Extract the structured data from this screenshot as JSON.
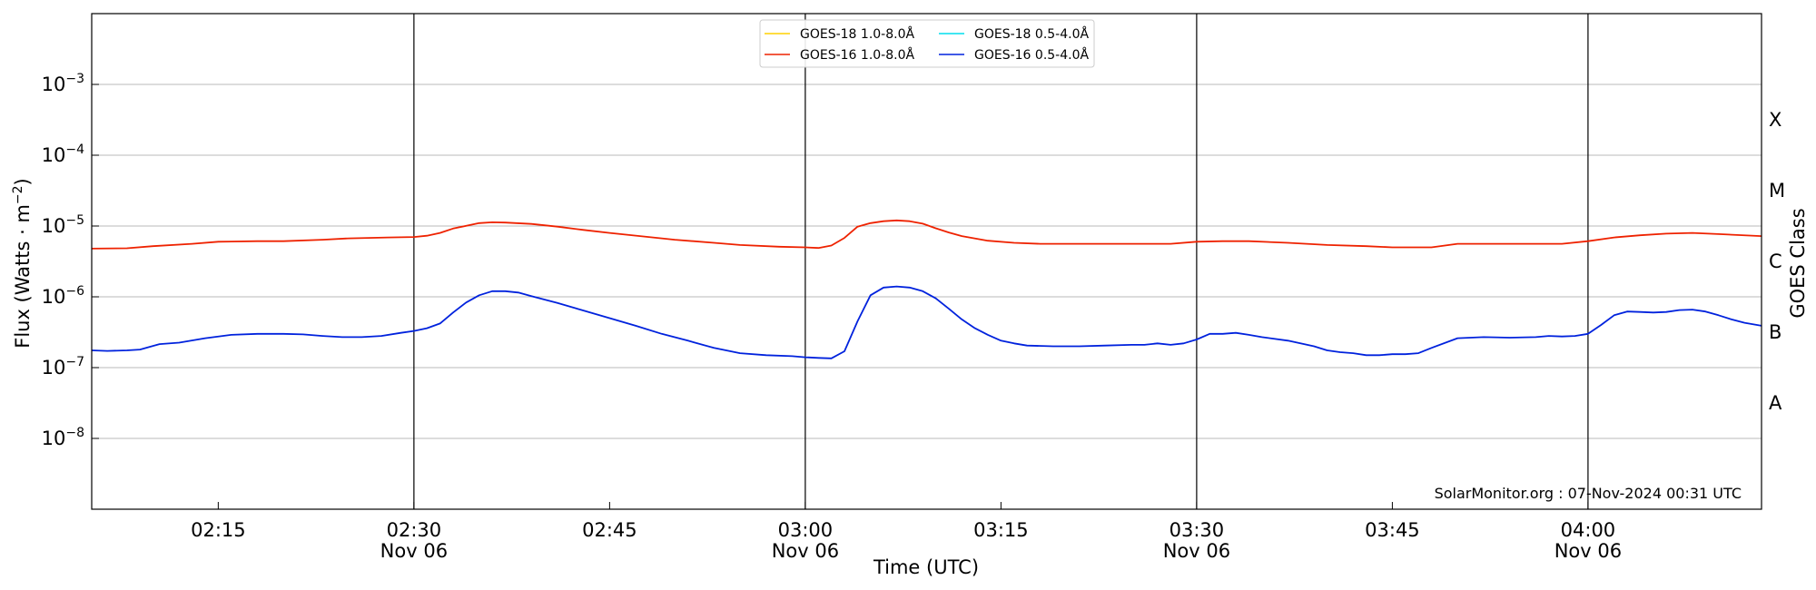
{
  "chart_data": {
    "type": "line",
    "xlabel": "Time (UTC)",
    "ylabel": "Flux (Watts · m",
    "ylabel_sup": "−2",
    "ylabel_close": ")",
    "right_label": "GOES Class",
    "footer": "SolarMonitor.org : 07-Nov-2024 00:31 UTC",
    "yscale": "log",
    "ylim": [
      1e-09,
      0.01
    ],
    "xlim_minutes_utc": [
      125.3,
      253.3
    ],
    "y_ticks": [
      {
        "value": 1e-08,
        "base": "10",
        "exp": "−8"
      },
      {
        "value": 1e-07,
        "base": "10",
        "exp": "−7"
      },
      {
        "value": 1e-06,
        "base": "10",
        "exp": "−6"
      },
      {
        "value": 1e-05,
        "base": "10",
        "exp": "−5"
      },
      {
        "value": 0.0001,
        "base": "10",
        "exp": "−4"
      },
      {
        "value": 0.001,
        "base": "10",
        "exp": "−3"
      }
    ],
    "x_ticks": [
      {
        "minute": 135,
        "label": "02:15",
        "date": ""
      },
      {
        "minute": 150,
        "label": "02:30",
        "date": "Nov 06"
      },
      {
        "minute": 165,
        "label": "02:45",
        "date": ""
      },
      {
        "minute": 180,
        "label": "03:00",
        "date": "Nov 06"
      },
      {
        "minute": 195,
        "label": "03:15",
        "date": ""
      },
      {
        "minute": 210,
        "label": "03:30",
        "date": "Nov 06"
      },
      {
        "minute": 225,
        "label": "03:45",
        "date": ""
      },
      {
        "minute": 240,
        "label": "04:00",
        "date": "Nov 06"
      }
    ],
    "vertical_lines_minutes": [
      150,
      180,
      210,
      240
    ],
    "goes_classes": [
      {
        "label": "A",
        "value": 3.16e-08
      },
      {
        "label": "B",
        "value": 3.16e-07
      },
      {
        "label": "C",
        "value": 3.16e-06
      },
      {
        "label": "M",
        "value": 3.16e-05
      },
      {
        "label": "X",
        "value": 0.000316
      }
    ],
    "legend_placement": "top-center",
    "series": [
      {
        "name": "GOES-18 1.0-8.0Å",
        "color": "#ffd000",
        "x": [],
        "y": []
      },
      {
        "name": "GOES-16 1.0-8.0Å",
        "color": "#ee2200",
        "x": [
          125.3,
          128,
          130,
          133,
          135,
          138,
          140,
          143,
          145,
          148,
          150,
          151,
          152,
          153,
          155,
          156,
          157,
          159,
          161,
          163,
          165,
          168,
          170,
          173,
          175,
          178,
          180,
          181,
          182,
          183,
          184,
          185,
          186,
          187,
          188,
          189,
          190,
          191,
          192,
          194,
          196,
          198,
          200,
          203,
          205,
          208,
          210,
          212,
          214,
          217,
          220,
          223,
          225,
          228,
          230,
          233,
          235,
          238,
          240,
          242,
          244,
          246,
          248,
          250,
          253.3
        ],
        "y": [
          4.8e-06,
          4.85e-06,
          5.2e-06,
          5.6e-06,
          6e-06,
          6.1e-06,
          6.1e-06,
          6.4e-06,
          6.7e-06,
          6.9e-06,
          7e-06,
          7.3e-06,
          8e-06,
          9.2e-06,
          1.1e-05,
          1.13e-05,
          1.12e-05,
          1.07e-05,
          9.8e-06,
          8.8e-06,
          8e-06,
          7e-06,
          6.4e-06,
          5.8e-06,
          5.4e-06,
          5.1e-06,
          5e-06,
          4.9e-06,
          5.3e-06,
          6.8e-06,
          9.8e-06,
          1.1e-05,
          1.17e-05,
          1.2e-05,
          1.17e-05,
          1.08e-05,
          9.3e-06,
          8.1e-06,
          7.2e-06,
          6.2e-06,
          5.8e-06,
          5.6e-06,
          5.6e-06,
          5.6e-06,
          5.6e-06,
          5.6e-06,
          6e-06,
          6.1e-06,
          6.1e-06,
          5.8e-06,
          5.4e-06,
          5.2e-06,
          5e-06,
          5e-06,
          5.6e-06,
          5.6e-06,
          5.6e-06,
          5.6e-06,
          6.1e-06,
          6.9e-06,
          7.4e-06,
          7.8e-06,
          8e-06,
          7.7e-06,
          7.2e-06
        ]
      },
      {
        "name": "GOES-18 0.5-4.0Å",
        "color": "#00ddee",
        "x": [],
        "y": []
      },
      {
        "name": "GOES-16 0.5-4.0Å",
        "color": "#0022dd",
        "x": [
          125.3,
          126.5,
          128,
          129,
          130.5,
          132,
          134,
          136,
          138,
          140,
          141.5,
          143,
          144.5,
          146,
          147.5,
          149,
          150,
          151,
          152,
          153,
          154,
          155,
          156,
          157,
          158,
          159,
          161,
          163,
          165,
          167,
          169,
          171,
          173,
          175,
          177,
          179,
          180,
          181,
          182,
          183,
          184,
          185,
          186,
          187,
          188,
          189,
          190,
          191,
          192,
          193,
          194,
          195,
          196,
          197,
          199,
          201,
          203,
          205,
          206,
          207,
          208,
          209,
          210,
          211,
          212,
          213,
          214,
          215,
          217,
          219,
          220,
          221,
          222,
          223,
          224,
          225,
          226,
          227,
          228,
          230,
          232,
          234,
          236,
          237,
          238,
          239,
          240,
          241,
          242,
          243,
          244,
          245,
          246,
          247,
          248,
          249,
          250,
          251,
          252,
          253.3
        ],
        "y": [
          1.75e-07,
          1.72e-07,
          1.75e-07,
          1.8e-07,
          2.15e-07,
          2.25e-07,
          2.6e-07,
          2.9e-07,
          3e-07,
          3e-07,
          2.95e-07,
          2.8e-07,
          2.7e-07,
          2.7e-07,
          2.8e-07,
          3.1e-07,
          3.3e-07,
          3.6e-07,
          4.2e-07,
          6e-07,
          8.3e-07,
          1.05e-06,
          1.2e-06,
          1.2e-06,
          1.15e-06,
          1.02e-06,
          8.2e-07,
          6.4e-07,
          5e-07,
          3.9e-07,
          3e-07,
          2.4e-07,
          1.9e-07,
          1.6e-07,
          1.5e-07,
          1.45e-07,
          1.4e-07,
          1.37e-07,
          1.35e-07,
          1.7e-07,
          4.5e-07,
          1.05e-06,
          1.35e-06,
          1.4e-06,
          1.35e-06,
          1.2e-06,
          9.5e-07,
          6.8e-07,
          4.8e-07,
          3.6e-07,
          2.9e-07,
          2.4e-07,
          2.2e-07,
          2.05e-07,
          2e-07,
          2e-07,
          2.05e-07,
          2.1e-07,
          2.1e-07,
          2.2e-07,
          2.1e-07,
          2.2e-07,
          2.5e-07,
          3e-07,
          3e-07,
          3.1e-07,
          2.9e-07,
          2.7e-07,
          2.4e-07,
          2e-07,
          1.75e-07,
          1.65e-07,
          1.6e-07,
          1.5e-07,
          1.5e-07,
          1.55e-07,
          1.55e-07,
          1.6e-07,
          1.9e-07,
          2.6e-07,
          2.7e-07,
          2.65e-07,
          2.7e-07,
          2.8e-07,
          2.75e-07,
          2.8e-07,
          3e-07,
          4e-07,
          5.5e-07,
          6.2e-07,
          6.1e-07,
          6e-07,
          6.1e-07,
          6.5e-07,
          6.6e-07,
          6.2e-07,
          5.5e-07,
          4.8e-07,
          4.3e-07,
          3.9e-07
        ]
      }
    ]
  }
}
